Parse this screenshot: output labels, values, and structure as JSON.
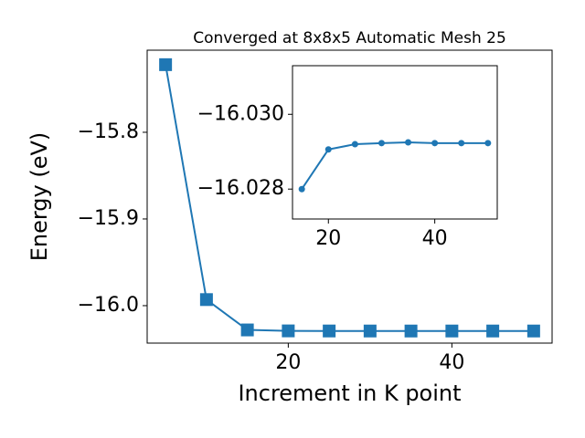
{
  "chart_data": [
    {
      "type": "line",
      "title": "Converged at 8x8x5 Automatic Mesh 25",
      "x_label": "Increment in K point",
      "y_label": "Energy (eV)",
      "x": [
        5,
        10,
        15,
        20,
        25,
        30,
        35,
        40,
        45,
        50
      ],
      "series": [
        {
          "name": "Energy",
          "color": "#1f77b4",
          "marker": "square",
          "values": [
            -15.722,
            -15.993,
            -16.028,
            -16.0291,
            -16.0292,
            -16.02923,
            -16.02925,
            -16.02923,
            -16.02923,
            -16.02923
          ]
        }
      ],
      "xlim": [
        2.75,
        52.25
      ],
      "xticks": [
        20,
        40
      ],
      "ylim": [
        -16.0432,
        -15.7053
      ],
      "yticks": [
        {
          "value": -16.0,
          "label": "−16.0"
        },
        {
          "value": -15.9,
          "label": "−15.9"
        },
        {
          "value": -15.8,
          "label": "−15.8"
        }
      ]
    },
    {
      "type": "line",
      "x": [
        15,
        20,
        25,
        30,
        35,
        40,
        45,
        50
      ],
      "series": [
        {
          "name": "Energy",
          "color": "#1f77b4",
          "marker": "circle",
          "values": [
            -16.028,
            -16.02906,
            -16.0292,
            -16.02923,
            -16.02925,
            -16.02923,
            -16.02923,
            -16.02923
          ]
        }
      ],
      "xlim": [
        13.25,
        51.75
      ],
      "xticks": [
        20,
        40
      ],
      "ylim": [
        -16.0272,
        -16.0313
      ],
      "yticks": [
        {
          "value": -16.028,
          "label": "−16.028"
        },
        {
          "value": -16.03,
          "label": "−16.030"
        }
      ]
    }
  ]
}
